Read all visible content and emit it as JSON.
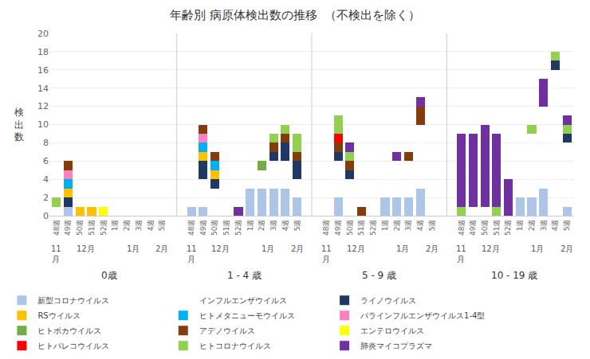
{
  "chart_data": {
    "type": "bar",
    "stacked": true,
    "title": "年齢別 病原体検出数の推移  （不検出を除く）",
    "ylabel": "検\n出\n数",
    "ylim": [
      0,
      20
    ],
    "yticks": [
      0,
      2,
      4,
      6,
      8,
      10,
      12,
      14,
      16,
      18,
      20
    ],
    "grid": true,
    "legend": "lower left",
    "categories": [
      [
        "0歳",
        "11\n月",
        "48週"
      ],
      [
        "0歳",
        "12月",
        "49週"
      ],
      [
        "0歳",
        "12月",
        "50週"
      ],
      [
        "0歳",
        "12月",
        "51週"
      ],
      [
        "0歳",
        "12月",
        "52週"
      ],
      [
        "0歳",
        "1月",
        "1週"
      ],
      [
        "0歳",
        "1月",
        "2週"
      ],
      [
        "0歳",
        "1月",
        "3週"
      ],
      [
        "0歳",
        "1月",
        "4週"
      ],
      [
        "0歳",
        "2月",
        "5週"
      ],
      [
        "1 - 4 歳",
        "11\n月",
        "48週"
      ],
      [
        "1 - 4 歳",
        "12月",
        "49週"
      ],
      [
        "1 - 4 歳",
        "12月",
        "50週"
      ],
      [
        "1 - 4 歳",
        "12月",
        "51週"
      ],
      [
        "1 - 4 歳",
        "12月",
        "52週"
      ],
      [
        "1 - 4 歳",
        "1月",
        "1週"
      ],
      [
        "1 - 4 歳",
        "1月",
        "2週"
      ],
      [
        "1 - 4 歳",
        "1月",
        "3週"
      ],
      [
        "1 - 4 歳",
        "1月",
        "4週"
      ],
      [
        "1 - 4 歳",
        "2月",
        "5週"
      ],
      [
        "5 - 9 歳",
        "11\n月",
        "48週"
      ],
      [
        "5 - 9 歳",
        "12月",
        "49週"
      ],
      [
        "5 - 9 歳",
        "12月",
        "50週"
      ],
      [
        "5 - 9 歳",
        "12月",
        "51週"
      ],
      [
        "5 - 9 歳",
        "12月",
        "52週"
      ],
      [
        "5 - 9 歳",
        "1月",
        "1週"
      ],
      [
        "5 - 9 歳",
        "1月",
        "2週"
      ],
      [
        "5 - 9 歳",
        "1月",
        "3週"
      ],
      [
        "5 - 9 歳",
        "1月",
        "4週"
      ],
      [
        "5 - 9 歳",
        "2月",
        "5週"
      ],
      [
        "10 - 19 歳",
        "11\n月",
        "48週"
      ],
      [
        "10 - 19 歳",
        "12月",
        "49週"
      ],
      [
        "10 - 19 歳",
        "12月",
        "50週"
      ],
      [
        "10 - 19 歳",
        "12月",
        "51週"
      ],
      [
        "10 - 19 歳",
        "12月",
        "52週"
      ],
      [
        "10 - 19 歳",
        "1月",
        "1週"
      ],
      [
        "10 - 19 歳",
        "1月",
        "2週"
      ],
      [
        "10 - 19 歳",
        "1月",
        "3週"
      ],
      [
        "10 - 19 歳",
        "1月",
        "4週"
      ],
      [
        "10 - 19 歳",
        "2月",
        "5週"
      ]
    ],
    "series": [
      {
        "name": "新型コロナウイルス",
        "color": "#adc6e8",
        "values": [
          0,
          1,
          0,
          0,
          0,
          0,
          0,
          0,
          0,
          0,
          1,
          1,
          0,
          0,
          0,
          3,
          3,
          3,
          3,
          2,
          0,
          2,
          0,
          0,
          0,
          2,
          2,
          2,
          3,
          0,
          0,
          0,
          0,
          0,
          0,
          2,
          2,
          3,
          0,
          1
        ]
      },
      {
        "name": "インフルエンザウイルス",
        "color": "#e07320",
        "marker": "dots",
        "values": [
          1,
          0,
          0,
          0,
          0,
          0,
          0,
          0,
          1,
          0,
          0,
          3,
          3,
          0,
          0,
          0,
          2,
          3,
          3,
          2,
          1,
          4,
          4,
          0,
          0,
          4,
          4,
          4,
          7,
          0,
          0,
          1,
          1,
          0,
          0,
          0,
          7,
          9,
          16,
          7
        ]
      },
      {
        "name": "ライノウイルス",
        "color": "#1f3864",
        "values": [
          0,
          1,
          0,
          0,
          0,
          0,
          0,
          0,
          0,
          0,
          0,
          2,
          1,
          0,
          0,
          0,
          0,
          1,
          2,
          2,
          0,
          1,
          1,
          0,
          0,
          0,
          0,
          0,
          0,
          0,
          0,
          0,
          0,
          0,
          0,
          0,
          0,
          0,
          1,
          1
        ]
      },
      {
        "name": "RSウイルス",
        "color": "#ffc000",
        "values": [
          0,
          1,
          1,
          1,
          0,
          0,
          0,
          0,
          0,
          0,
          0,
          1,
          1,
          0,
          0,
          0,
          0,
          0,
          0,
          0,
          0,
          0,
          0,
          0,
          0,
          0,
          0,
          0,
          0,
          0,
          0,
          0,
          0,
          0,
          0,
          0,
          0,
          0,
          0,
          0
        ]
      },
      {
        "name": "ヒトメタニューモウイルス",
        "color": "#00b0f0",
        "values": [
          0,
          1,
          0,
          0,
          0,
          0,
          0,
          0,
          0,
          0,
          0,
          1,
          1,
          0,
          0,
          0,
          0,
          0,
          0,
          0,
          0,
          0,
          0,
          0,
          0,
          0,
          0,
          0,
          0,
          0,
          0,
          0,
          0,
          0,
          0,
          0,
          0,
          0,
          0,
          0
        ]
      },
      {
        "name": "パラインフルエンザウイルス1-4型",
        "color": "#ff80bf",
        "values": [
          0,
          1,
          0,
          0,
          0,
          0,
          0,
          0,
          0,
          0,
          0,
          1,
          0,
          0,
          0,
          0,
          0,
          0,
          0,
          0,
          0,
          0,
          0,
          0,
          0,
          0,
          0,
          0,
          0,
          0,
          0,
          0,
          0,
          0,
          0,
          0,
          0,
          0,
          0,
          0
        ]
      },
      {
        "name": "ヒトボカウイルス",
        "color": "#70ad47",
        "values": [
          0,
          0,
          0,
          0,
          0,
          0,
          0,
          0,
          0,
          0,
          0,
          0,
          0,
          0,
          0,
          0,
          1,
          0,
          0,
          0,
          0,
          0,
          0,
          0,
          0,
          0,
          0,
          0,
          0,
          0,
          0,
          0,
          0,
          0,
          0,
          0,
          0,
          0,
          0,
          0
        ]
      },
      {
        "name": "アデノウイルス",
        "color": "#843c0c",
        "values": [
          0,
          1,
          0,
          0,
          0,
          0,
          0,
          0,
          0,
          0,
          0,
          1,
          1,
          0,
          0,
          0,
          0,
          1,
          1,
          1,
          0,
          1,
          1,
          1,
          0,
          0,
          0,
          1,
          2,
          0,
          0,
          0,
          0,
          0,
          0,
          0,
          0,
          0,
          0,
          0
        ]
      },
      {
        "name": "エンテロウイルス",
        "color": "#ffff00",
        "values": [
          0,
          0,
          0,
          0,
          1,
          0,
          0,
          0,
          0,
          0,
          0,
          0,
          0,
          0,
          0,
          0,
          0,
          0,
          0,
          0,
          0,
          0,
          0,
          0,
          0,
          0,
          0,
          0,
          0,
          0,
          0,
          0,
          0,
          0,
          0,
          0,
          0,
          0,
          0,
          0
        ]
      },
      {
        "name": "ヒトパレコウイルス",
        "color": "#ff0000",
        "values": [
          0,
          0,
          0,
          0,
          0,
          0,
          0,
          0,
          0,
          0,
          0,
          0,
          0,
          0,
          0,
          0,
          0,
          0,
          0,
          0,
          0,
          1,
          0,
          0,
          0,
          0,
          0,
          0,
          0,
          0,
          0,
          0,
          0,
          0,
          0,
          0,
          0,
          0,
          0,
          0
        ]
      },
      {
        "name": "ヒトコロナウイルス",
        "color": "#92d050",
        "values": [
          1,
          0,
          0,
          0,
          0,
          0,
          0,
          0,
          0,
          0,
          0,
          0,
          0,
          0,
          0,
          0,
          0,
          1,
          1,
          2,
          0,
          2,
          1,
          0,
          0,
          0,
          0,
          0,
          0,
          0,
          1,
          0,
          0,
          1,
          0,
          0,
          1,
          0,
          1,
          1
        ]
      },
      {
        "name": "肺炎マイコプラズマ",
        "color": "#7030a0",
        "values": [
          0,
          0,
          0,
          0,
          0,
          0,
          0,
          0,
          0,
          0,
          0,
          0,
          0,
          0,
          1,
          0,
          0,
          0,
          0,
          0,
          0,
          0,
          1,
          0,
          0,
          0,
          1,
          0,
          1,
          0,
          8,
          8,
          9,
          8,
          4,
          0,
          0,
          3,
          0,
          1
        ]
      }
    ]
  }
}
